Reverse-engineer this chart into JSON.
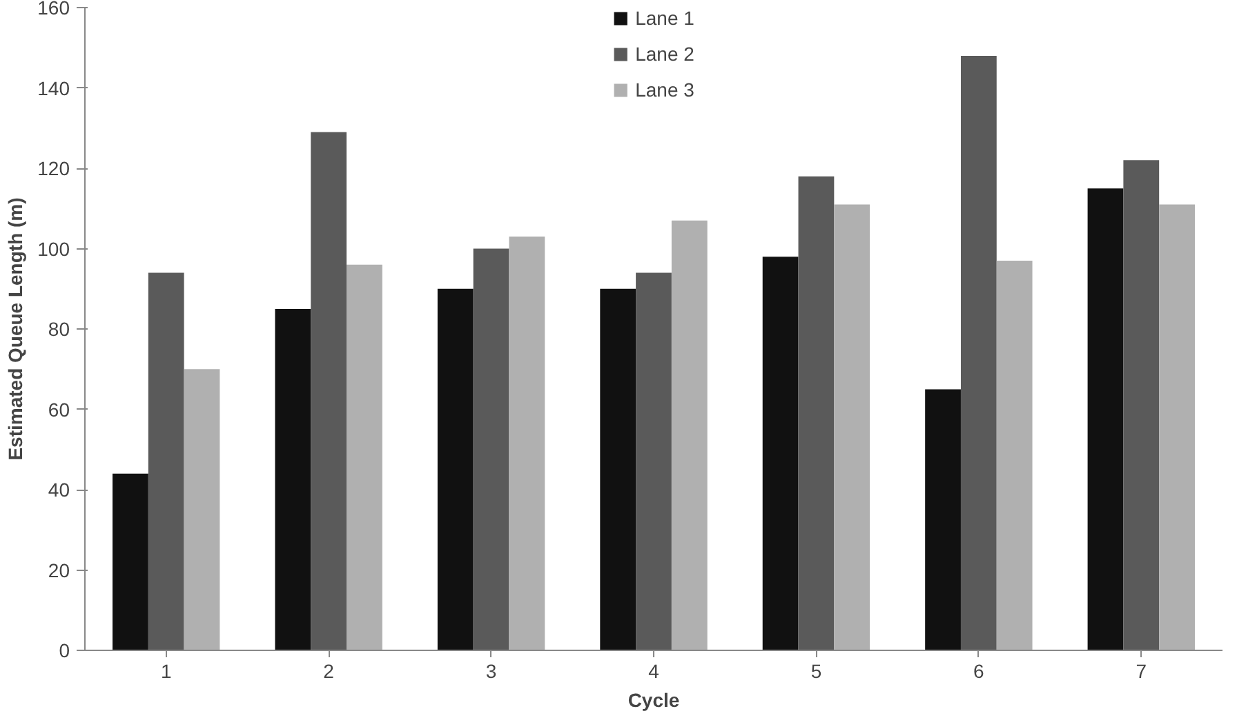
{
  "chart_data": {
    "type": "bar",
    "xlabel": "Cycle",
    "ylabel": "Estimated Queue Length (m)",
    "categories": [
      "1",
      "2",
      "3",
      "4",
      "5",
      "6",
      "7"
    ],
    "series": [
      {
        "name": "Lane 1",
        "color": "#111111",
        "values": [
          44,
          85,
          90,
          90,
          98,
          65,
          115
        ]
      },
      {
        "name": "Lane 2",
        "color": "#5a5a5a",
        "values": [
          94,
          129,
          100,
          94,
          118,
          148,
          122
        ]
      },
      {
        "name": "Lane 3",
        "color": "#b0b0b0",
        "values": [
          70,
          96,
          103,
          107,
          111,
          97,
          111
        ]
      }
    ],
    "ylim": [
      0,
      160
    ],
    "yticks": [
      0,
      20,
      40,
      60,
      80,
      100,
      120,
      140,
      160
    ],
    "grid": false,
    "legend": "top"
  }
}
